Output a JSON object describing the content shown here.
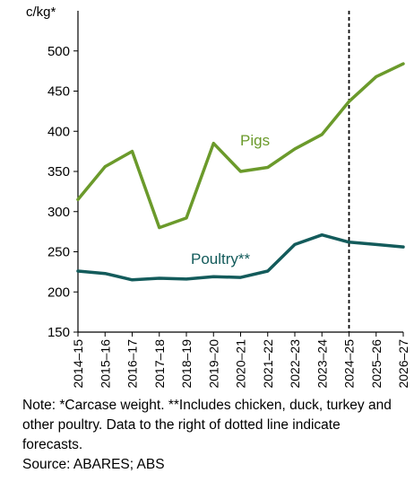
{
  "chart_data": {
    "type": "line",
    "ylabel": "c/kg*",
    "categories": [
      "2014–15",
      "2015–16",
      "2016–17",
      "2017–18",
      "2018–19",
      "2019–20",
      "2020–21",
      "2021–22",
      "2022–23",
      "2023–24",
      "2024–25",
      "2025–26",
      "2026–27"
    ],
    "ylim": [
      150,
      550
    ],
    "yticks": [
      150,
      200,
      250,
      300,
      350,
      400,
      450,
      500
    ],
    "grid": false,
    "forecast_from": "2024–25",
    "series": [
      {
        "name": "Pigs",
        "color": "#6b9a2b",
        "values": [
          315,
          356,
          375,
          280,
          292,
          385,
          350,
          355,
          378,
          396,
          437,
          468,
          484
        ]
      },
      {
        "name": "Poultry**",
        "color": "#135b5b",
        "values": [
          226,
          223,
          215,
          217,
          216,
          219,
          218,
          226,
          259,
          271,
          262,
          259,
          256
        ]
      }
    ]
  },
  "note": {
    "lines": [
      "Note: *Carcase weight. **Includes chicken, duck, turkey and",
      "other poultry. Data to the right of dotted line indicate",
      "forecasts."
    ],
    "source": "Source: ABARES; ABS"
  }
}
